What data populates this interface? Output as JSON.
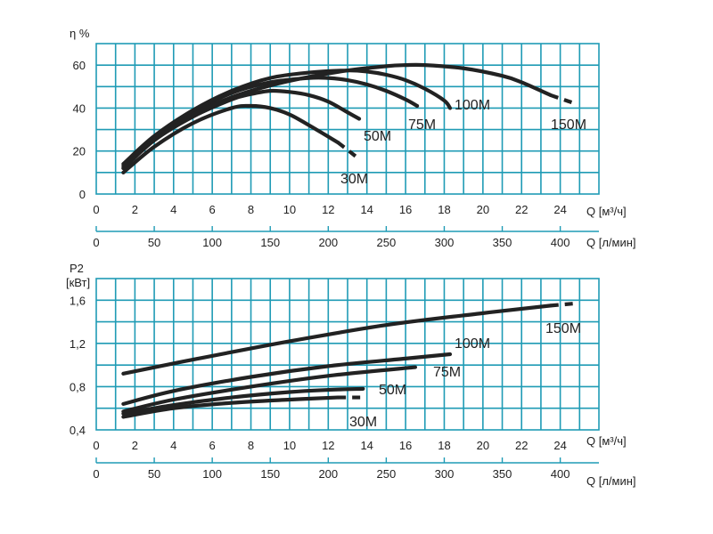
{
  "chart_data": [
    {
      "type": "line",
      "title": "",
      "ylabel": "η %",
      "xlabel": "Q [м³/ч]",
      "x2label": "Q [л/мин]",
      "xlim": [
        0,
        26
      ],
      "ylim": [
        0,
        70
      ],
      "xticks": [
        0,
        2,
        4,
        6,
        8,
        10,
        12,
        14,
        16,
        18,
        20,
        22,
        24
      ],
      "yticks": [
        0,
        20,
        40,
        60
      ],
      "x2ticks": [
        0,
        50,
        100,
        150,
        200,
        250,
        300,
        350,
        400
      ],
      "grid": true,
      "series": [
        {
          "name": "30M",
          "x": [
            1.4,
            3,
            5,
            7,
            8,
            9,
            10,
            11,
            12.5
          ],
          "y": [
            10,
            22,
            33,
            40,
            41,
            40,
            37,
            32,
            24
          ],
          "dashed_x": [
            12.5,
            13.5
          ],
          "dashed_y": [
            24,
            17
          ]
        },
        {
          "name": "50M",
          "x": [
            1.4,
            3,
            5,
            7,
            8,
            9,
            10,
            11,
            12,
            13,
            13.6
          ],
          "y": [
            12,
            25,
            36,
            44,
            46.5,
            48,
            47.5,
            46,
            43,
            38,
            35
          ]
        },
        {
          "name": "75M",
          "x": [
            1.4,
            3,
            5,
            7,
            9,
            11,
            12,
            13,
            14,
            15,
            16,
            16.6
          ],
          "y": [
            13,
            26,
            38,
            47,
            52,
            54,
            54,
            53,
            51,
            48,
            44,
            41
          ]
        },
        {
          "name": "100M",
          "x": [
            1.4,
            3,
            5,
            7,
            9,
            11,
            13,
            14,
            15,
            16,
            17,
            18,
            18.3
          ],
          "y": [
            14,
            27,
            39,
            48,
            54,
            56.5,
            57.5,
            57,
            55.5,
            53,
            49,
            43.5,
            40
          ]
        },
        {
          "name": "150M",
          "x": [
            1.4,
            3,
            5,
            7,
            9,
            11,
            13,
            15,
            16,
            17,
            19,
            21,
            22,
            23.5
          ],
          "y": [
            12,
            25,
            37,
            45,
            50.5,
            54.5,
            57.5,
            59.5,
            60,
            60,
            58.5,
            55,
            52,
            46
          ],
          "dashed_x": [
            23.5,
            24.8
          ],
          "dashed_y": [
            46,
            42
          ]
        }
      ]
    },
    {
      "type": "line",
      "title": "",
      "ylabel": "P2",
      "yunit": "[кВт]",
      "xlabel": "Q [м³/ч]",
      "x2label": "Q [л/мин]",
      "xlim": [
        0,
        26
      ],
      "ylim": [
        0.4,
        1.8
      ],
      "xticks": [
        0,
        2,
        4,
        6,
        8,
        10,
        12,
        14,
        16,
        18,
        20,
        22,
        24
      ],
      "yticks": [
        "0,4",
        "0,8",
        "1,2",
        "1,6"
      ],
      "ytick_values": [
        0.4,
        0.8,
        1.2,
        1.6
      ],
      "x2ticks": [
        0,
        50,
        100,
        150,
        200,
        250,
        300,
        350,
        400
      ],
      "grid": true,
      "series": [
        {
          "name": "30M",
          "x": [
            1.4,
            4,
            7,
            10,
            12.5
          ],
          "y": [
            0.52,
            0.6,
            0.65,
            0.68,
            0.7
          ],
          "dashed_x": [
            12.5,
            13.7
          ],
          "dashed_y": [
            0.7,
            0.7
          ]
        },
        {
          "name": "50M",
          "x": [
            1.4,
            4,
            7,
            10,
            12,
            13.8
          ],
          "y": [
            0.55,
            0.63,
            0.7,
            0.75,
            0.77,
            0.78
          ]
        },
        {
          "name": "75M",
          "x": [
            1.4,
            4,
            8,
            12,
            16.5
          ],
          "y": [
            0.57,
            0.68,
            0.8,
            0.9,
            0.98
          ]
        },
        {
          "name": "100M",
          "x": [
            1.4,
            4,
            8,
            12,
            16,
            18.3
          ],
          "y": [
            0.64,
            0.76,
            0.89,
            0.99,
            1.06,
            1.1
          ]
        },
        {
          "name": "150M",
          "x": [
            1.4,
            5,
            10,
            15,
            20,
            23.5
          ],
          "y": [
            0.92,
            1.05,
            1.22,
            1.37,
            1.48,
            1.55
          ],
          "dashed_x": [
            23.5,
            24.8
          ],
          "dashed_y": [
            1.55,
            1.57
          ]
        }
      ]
    }
  ],
  "labels": {
    "eta": "η %",
    "p2": "P2",
    "p2_unit": "[кВт]",
    "q_m3h": "Q [м³/ч]",
    "q_lmin": "Q [л/мин]"
  },
  "colors": {
    "grid": "#1f9bb5",
    "curve": "#222222"
  }
}
